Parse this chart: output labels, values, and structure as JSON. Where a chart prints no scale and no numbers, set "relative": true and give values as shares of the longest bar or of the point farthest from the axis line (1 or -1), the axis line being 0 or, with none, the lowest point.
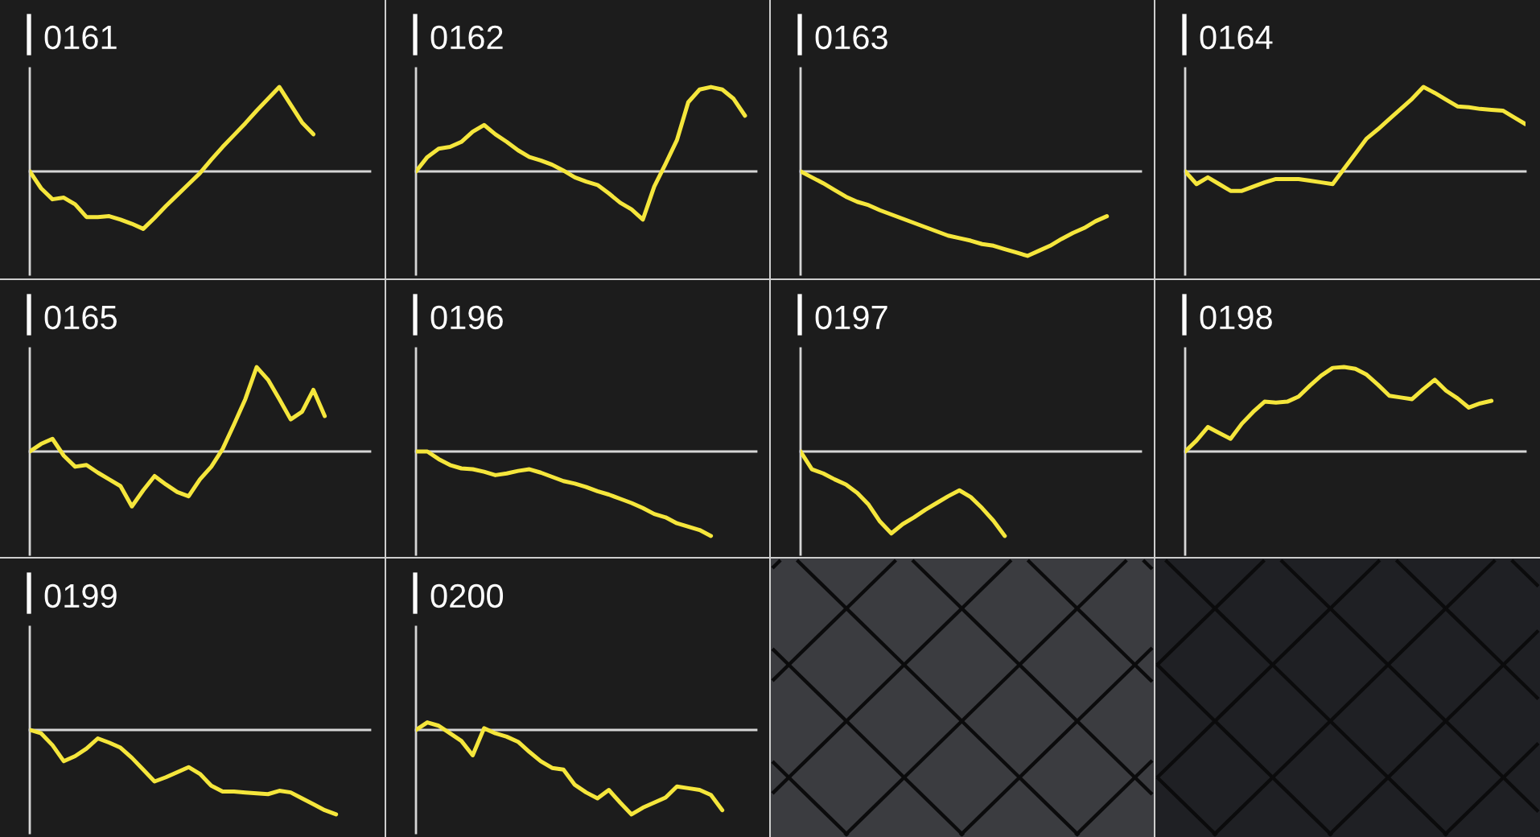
{
  "chart_data": [
    {
      "type": "line",
      "title": "0161",
      "relative": true,
      "color": "#f5e63c",
      "categories": [
        null,
        null,
        null,
        null,
        null,
        null,
        null,
        null,
        null,
        null,
        null,
        null,
        null,
        null,
        null,
        null,
        null,
        null,
        null,
        null,
        null,
        null,
        null,
        null,
        null,
        null,
        null,
        null,
        null,
        null,
        null
      ],
      "values": [
        0,
        -0.2,
        -0.33,
        -0.31,
        -0.39,
        -0.54,
        -0.54,
        -0.53,
        -0.57,
        -0.62,
        -0.68,
        -0.55,
        -0.41,
        -0.28,
        -0.15,
        -0.02,
        0.14,
        0.29,
        0.43,
        0.57,
        0.72,
        0.86,
        1,
        0.79,
        0.58,
        0.44,
        null,
        null,
        null,
        null,
        null
      ]
    },
    {
      "type": "line",
      "title": "0162",
      "relative": true,
      "color": "#f5e63c",
      "categories": [
        null,
        null,
        null,
        null,
        null,
        null,
        null,
        null,
        null,
        null,
        null,
        null,
        null,
        null,
        null,
        null,
        null,
        null,
        null,
        null,
        null,
        null,
        null,
        null,
        null,
        null,
        null,
        null,
        null,
        null,
        null
      ],
      "values": [
        0,
        0.17,
        0.27,
        0.29,
        0.35,
        0.47,
        0.55,
        0.44,
        0.35,
        0.25,
        0.17,
        0.13,
        0.08,
        0.01,
        -0.07,
        -0.12,
        -0.16,
        -0.26,
        -0.37,
        -0.45,
        -0.57,
        -0.18,
        0.09,
        0.37,
        0.82,
        0.97,
        1,
        0.97,
        0.86,
        0.66,
        null
      ]
    },
    {
      "type": "line",
      "title": "0163",
      "relative": true,
      "color": "#f5e63c",
      "categories": [
        null,
        null,
        null,
        null,
        null,
        null,
        null,
        null,
        null,
        null,
        null,
        null,
        null,
        null,
        null,
        null,
        null,
        null,
        null,
        null,
        null,
        null,
        null,
        null,
        null,
        null,
        null,
        null,
        null,
        null,
        null
      ],
      "values": [
        0,
        -0.07,
        -0.14,
        -0.22,
        -0.3,
        -0.36,
        -0.4,
        -0.46,
        -0.51,
        -0.56,
        -0.61,
        -0.66,
        -0.71,
        -0.76,
        -0.79,
        -0.82,
        -0.86,
        -0.88,
        -0.92,
        -0.96,
        -1,
        -0.94,
        -0.88,
        -0.8,
        -0.73,
        -0.67,
        -0.59,
        -0.53,
        null,
        null,
        null
      ]
    },
    {
      "type": "line",
      "title": "0164",
      "relative": true,
      "color": "#f5e63c",
      "categories": [
        null,
        null,
        null,
        null,
        null,
        null,
        null,
        null,
        null,
        null,
        null,
        null,
        null,
        null,
        null,
        null,
        null,
        null,
        null,
        null,
        null,
        null,
        null,
        null,
        null,
        null,
        null,
        null,
        null,
        null,
        null
      ],
      "values": [
        0,
        -0.15,
        -0.07,
        -0.15,
        -0.23,
        -0.23,
        -0.18,
        -0.13,
        -0.09,
        -0.09,
        -0.09,
        -0.11,
        -0.13,
        -0.15,
        0.03,
        0.21,
        0.39,
        0.5,
        0.62,
        0.74,
        0.86,
        1,
        0.93,
        0.85,
        0.77,
        0.76,
        0.74,
        0.73,
        0.72,
        0.64,
        0.56
      ]
    },
    {
      "type": "line",
      "title": "0165",
      "relative": true,
      "color": "#f5e63c",
      "categories": [
        null,
        null,
        null,
        null,
        null,
        null,
        null,
        null,
        null,
        null,
        null,
        null,
        null,
        null,
        null,
        null,
        null,
        null,
        null,
        null,
        null,
        null,
        null,
        null,
        null,
        null,
        null,
        null,
        null,
        null,
        null
      ],
      "values": [
        0,
        0.09,
        0.15,
        -0.05,
        -0.18,
        -0.16,
        -0.25,
        -0.33,
        -0.41,
        -0.65,
        -0.46,
        -0.29,
        -0.39,
        -0.48,
        -0.53,
        -0.33,
        -0.18,
        0.03,
        0.32,
        0.62,
        1,
        0.85,
        0.62,
        0.38,
        0.47,
        0.73,
        0.42,
        null,
        null,
        null,
        null
      ]
    },
    {
      "type": "line",
      "title": "0196",
      "relative": true,
      "color": "#f5e63c",
      "categories": [
        null,
        null,
        null,
        null,
        null,
        null,
        null,
        null,
        null,
        null,
        null,
        null,
        null,
        null,
        null,
        null,
        null,
        null,
        null,
        null,
        null,
        null,
        null,
        null,
        null,
        null,
        null,
        null,
        null,
        null,
        null
      ],
      "values": [
        0,
        0,
        -0.09,
        -0.16,
        -0.2,
        -0.21,
        -0.24,
        -0.28,
        -0.26,
        -0.23,
        -0.21,
        -0.25,
        -0.3,
        -0.35,
        -0.38,
        -0.42,
        -0.47,
        -0.51,
        -0.56,
        -0.61,
        -0.67,
        -0.74,
        -0.78,
        -0.85,
        -0.89,
        -0.93,
        -1,
        null,
        null,
        null,
        null
      ]
    },
    {
      "type": "line",
      "title": "0197",
      "relative": true,
      "color": "#f5e63c",
      "categories": [
        null,
        null,
        null,
        null,
        null,
        null,
        null,
        null,
        null,
        null,
        null,
        null,
        null,
        null,
        null,
        null,
        null,
        null,
        null,
        null,
        null,
        null,
        null,
        null,
        null,
        null,
        null,
        null,
        null,
        null,
        null
      ],
      "values": [
        0,
        -0.21,
        -0.26,
        -0.33,
        -0.39,
        -0.49,
        -0.63,
        -0.83,
        -0.97,
        -0.86,
        -0.78,
        -0.69,
        -0.61,
        -0.53,
        -0.46,
        -0.54,
        -0.67,
        -0.82,
        -1,
        null,
        null,
        null,
        null,
        null,
        null,
        null,
        null,
        null,
        null,
        null,
        null
      ]
    },
    {
      "type": "line",
      "title": "0198",
      "relative": true,
      "color": "#f5e63c",
      "categories": [
        null,
        null,
        null,
        null,
        null,
        null,
        null,
        null,
        null,
        null,
        null,
        null,
        null,
        null,
        null,
        null,
        null,
        null,
        null,
        null,
        null,
        null,
        null,
        null,
        null,
        null,
        null,
        null,
        null,
        null,
        null
      ],
      "values": [
        0,
        0.13,
        0.29,
        0.22,
        0.15,
        0.33,
        0.47,
        0.59,
        0.58,
        0.59,
        0.65,
        0.78,
        0.9,
        0.99,
        1,
        0.98,
        0.91,
        0.79,
        0.66,
        0.64,
        0.62,
        0.74,
        0.85,
        0.72,
        0.63,
        0.52,
        0.57,
        0.6,
        null,
        null,
        null
      ]
    },
    {
      "type": "line",
      "title": "0199",
      "relative": true,
      "color": "#f5e63c",
      "categories": [
        null,
        null,
        null,
        null,
        null,
        null,
        null,
        null,
        null,
        null,
        null,
        null,
        null,
        null,
        null,
        null,
        null,
        null,
        null,
        null,
        null,
        null,
        null,
        null,
        null,
        null,
        null,
        null,
        null,
        null,
        null
      ],
      "values": [
        0,
        -0.04,
        -0.18,
        -0.37,
        -0.31,
        -0.22,
        -0.1,
        -0.15,
        -0.21,
        -0.33,
        -0.47,
        -0.61,
        -0.56,
        -0.5,
        -0.44,
        -0.52,
        -0.66,
        -0.73,
        -0.73,
        -0.74,
        -0.75,
        -0.76,
        -0.72,
        -0.74,
        -0.81,
        -0.88,
        -0.95,
        -1,
        null,
        null,
        null
      ]
    },
    {
      "type": "line",
      "title": "0200",
      "relative": true,
      "color": "#f5e63c",
      "categories": [
        null,
        null,
        null,
        null,
        null,
        null,
        null,
        null,
        null,
        null,
        null,
        null,
        null,
        null,
        null,
        null,
        null,
        null,
        null,
        null,
        null,
        null,
        null,
        null,
        null,
        null,
        null,
        null,
        null,
        null,
        null
      ],
      "values": [
        0,
        0.09,
        0.05,
        -0.04,
        -0.13,
        -0.3,
        0.02,
        -0.04,
        -0.08,
        -0.14,
        -0.26,
        -0.37,
        -0.45,
        -0.47,
        -0.65,
        -0.74,
        -0.81,
        -0.71,
        -0.86,
        -1,
        -0.92,
        -0.86,
        -0.8,
        -0.67,
        -0.69,
        -0.71,
        -0.77,
        -0.95,
        null,
        null,
        null
      ]
    }
  ]
}
